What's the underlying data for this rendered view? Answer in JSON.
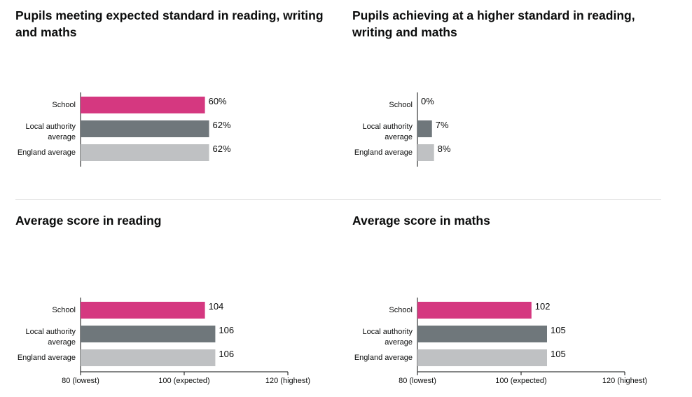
{
  "colors": {
    "school": "#d53880",
    "local": "#6f777b",
    "england": "#bfc1c3"
  },
  "chart_data": [
    {
      "type": "bar",
      "title": "Pupils meeting expected standard in reading, writing and maths",
      "categories": [
        [
          "School"
        ],
        [
          "Local authority",
          "average"
        ],
        [
          "England average"
        ]
      ],
      "values": [
        60,
        62,
        62
      ],
      "value_labels": [
        "60%",
        "62%",
        "62%"
      ],
      "xlim": [
        0,
        100
      ],
      "ticks": []
    },
    {
      "type": "bar",
      "title": "Pupils achieving at a higher standard in reading, writing and maths",
      "categories": [
        [
          "School"
        ],
        [
          "Local authority",
          "average"
        ],
        [
          "England average"
        ]
      ],
      "values": [
        0,
        7,
        8
      ],
      "value_labels": [
        "0%",
        "7%",
        "8%"
      ],
      "xlim": [
        0,
        100
      ],
      "ticks": []
    },
    {
      "type": "bar",
      "title": "Average score in reading",
      "categories": [
        [
          "School"
        ],
        [
          "Local authority",
          "average"
        ],
        [
          "England average"
        ]
      ],
      "values": [
        104,
        106,
        106
      ],
      "value_labels": [
        "104",
        "106",
        "106"
      ],
      "xlim": [
        80,
        120
      ],
      "ticks": [
        {
          "value": 80,
          "label": "80 (lowest)"
        },
        {
          "value": 100,
          "label": "100 (expected)"
        },
        {
          "value": 120,
          "label": "120 (highest)"
        }
      ]
    },
    {
      "type": "bar",
      "title": "Average score in maths",
      "categories": [
        [
          "School"
        ],
        [
          "Local authority",
          "average"
        ],
        [
          "England average"
        ]
      ],
      "values": [
        102,
        105,
        105
      ],
      "value_labels": [
        "102",
        "105",
        "105"
      ],
      "xlim": [
        80,
        120
      ],
      "ticks": [
        {
          "value": 80,
          "label": "80 (lowest)"
        },
        {
          "value": 100,
          "label": "100 (expected)"
        },
        {
          "value": 120,
          "label": "120 (highest)"
        }
      ]
    }
  ]
}
